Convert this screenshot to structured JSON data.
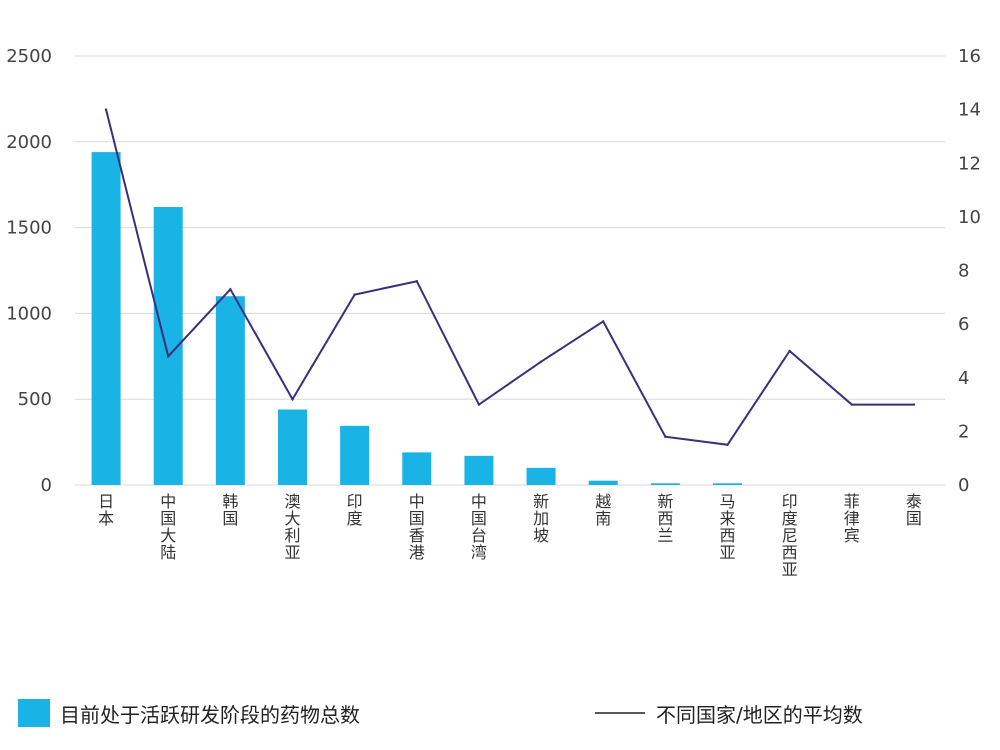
{
  "colors": {
    "bar": "#1ab3e6",
    "line": "#3a2f7a",
    "grid": "#d9d9d9"
  },
  "chart_data": {
    "type": "bar",
    "title": "",
    "categories": [
      "日本",
      "中国大陆",
      "韩国",
      "澳大利亚",
      "印度",
      "中国香港",
      "中国台湾",
      "新加坡",
      "越南",
      "新西兰",
      "马来西亚",
      "印度尼西亚",
      "菲律宾",
      "泰国"
    ],
    "series": [
      {
        "name": "目前处于活跃研发阶段的药物总数",
        "type": "bar",
        "axis": "left",
        "values": [
          1940,
          1620,
          1100,
          440,
          345,
          190,
          170,
          100,
          25,
          10,
          10,
          0,
          0,
          0
        ]
      },
      {
        "name": "不同国家/地区的平均数",
        "type": "line",
        "axis": "right",
        "values": [
          14,
          4.8,
          7.3,
          3.2,
          7.1,
          7.6,
          3.0,
          4.6,
          6.1,
          1.8,
          1.5,
          5.0,
          3.0,
          3.0
        ]
      }
    ],
    "ylim_left": [
      0,
      2500
    ],
    "yticks_left": [
      "0",
      "500",
      "1000",
      "1500",
      "2000",
      "2500"
    ],
    "ylim_right": [
      0,
      16
    ],
    "yticks_right": [
      "0",
      "2",
      "4",
      "6",
      "8",
      "10",
      "12",
      "14",
      "16"
    ],
    "grid": true,
    "legend": "bottom"
  }
}
